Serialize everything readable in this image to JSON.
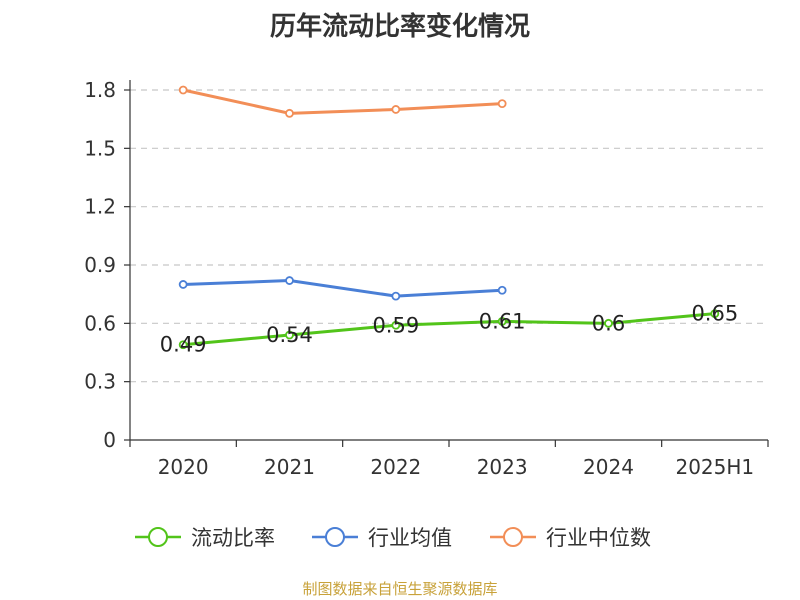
{
  "title": "历年流动比率变化情况",
  "source": "制图数据来自恒生聚源数据库",
  "chart_data": {
    "type": "line",
    "title": "历年流动比率变化情况",
    "categories": [
      "2020",
      "2021",
      "2022",
      "2023",
      "2024",
      "2025H1"
    ],
    "ylim": [
      0,
      1.8
    ],
    "yticks": [
      "0",
      "0.3",
      "0.6",
      "0.9",
      "1.2",
      "1.5",
      "1.8"
    ],
    "grid": true,
    "legend_position": "bottom",
    "series": [
      {
        "name": "流动比率",
        "color": "#52c41a",
        "values": [
          0.49,
          0.54,
          0.59,
          0.61,
          0.6,
          0.65
        ],
        "labels": [
          "0.49",
          "0.54",
          "0.59",
          "0.61",
          "0.6",
          "0.65"
        ]
      },
      {
        "name": "行业均值",
        "color": "#4a7fd6",
        "values": [
          0.8,
          0.82,
          0.74,
          0.77,
          null,
          null
        ]
      },
      {
        "name": "行业中位数",
        "color": "#f28e57",
        "values": [
          1.8,
          1.68,
          1.7,
          1.73,
          null,
          null
        ]
      }
    ]
  }
}
